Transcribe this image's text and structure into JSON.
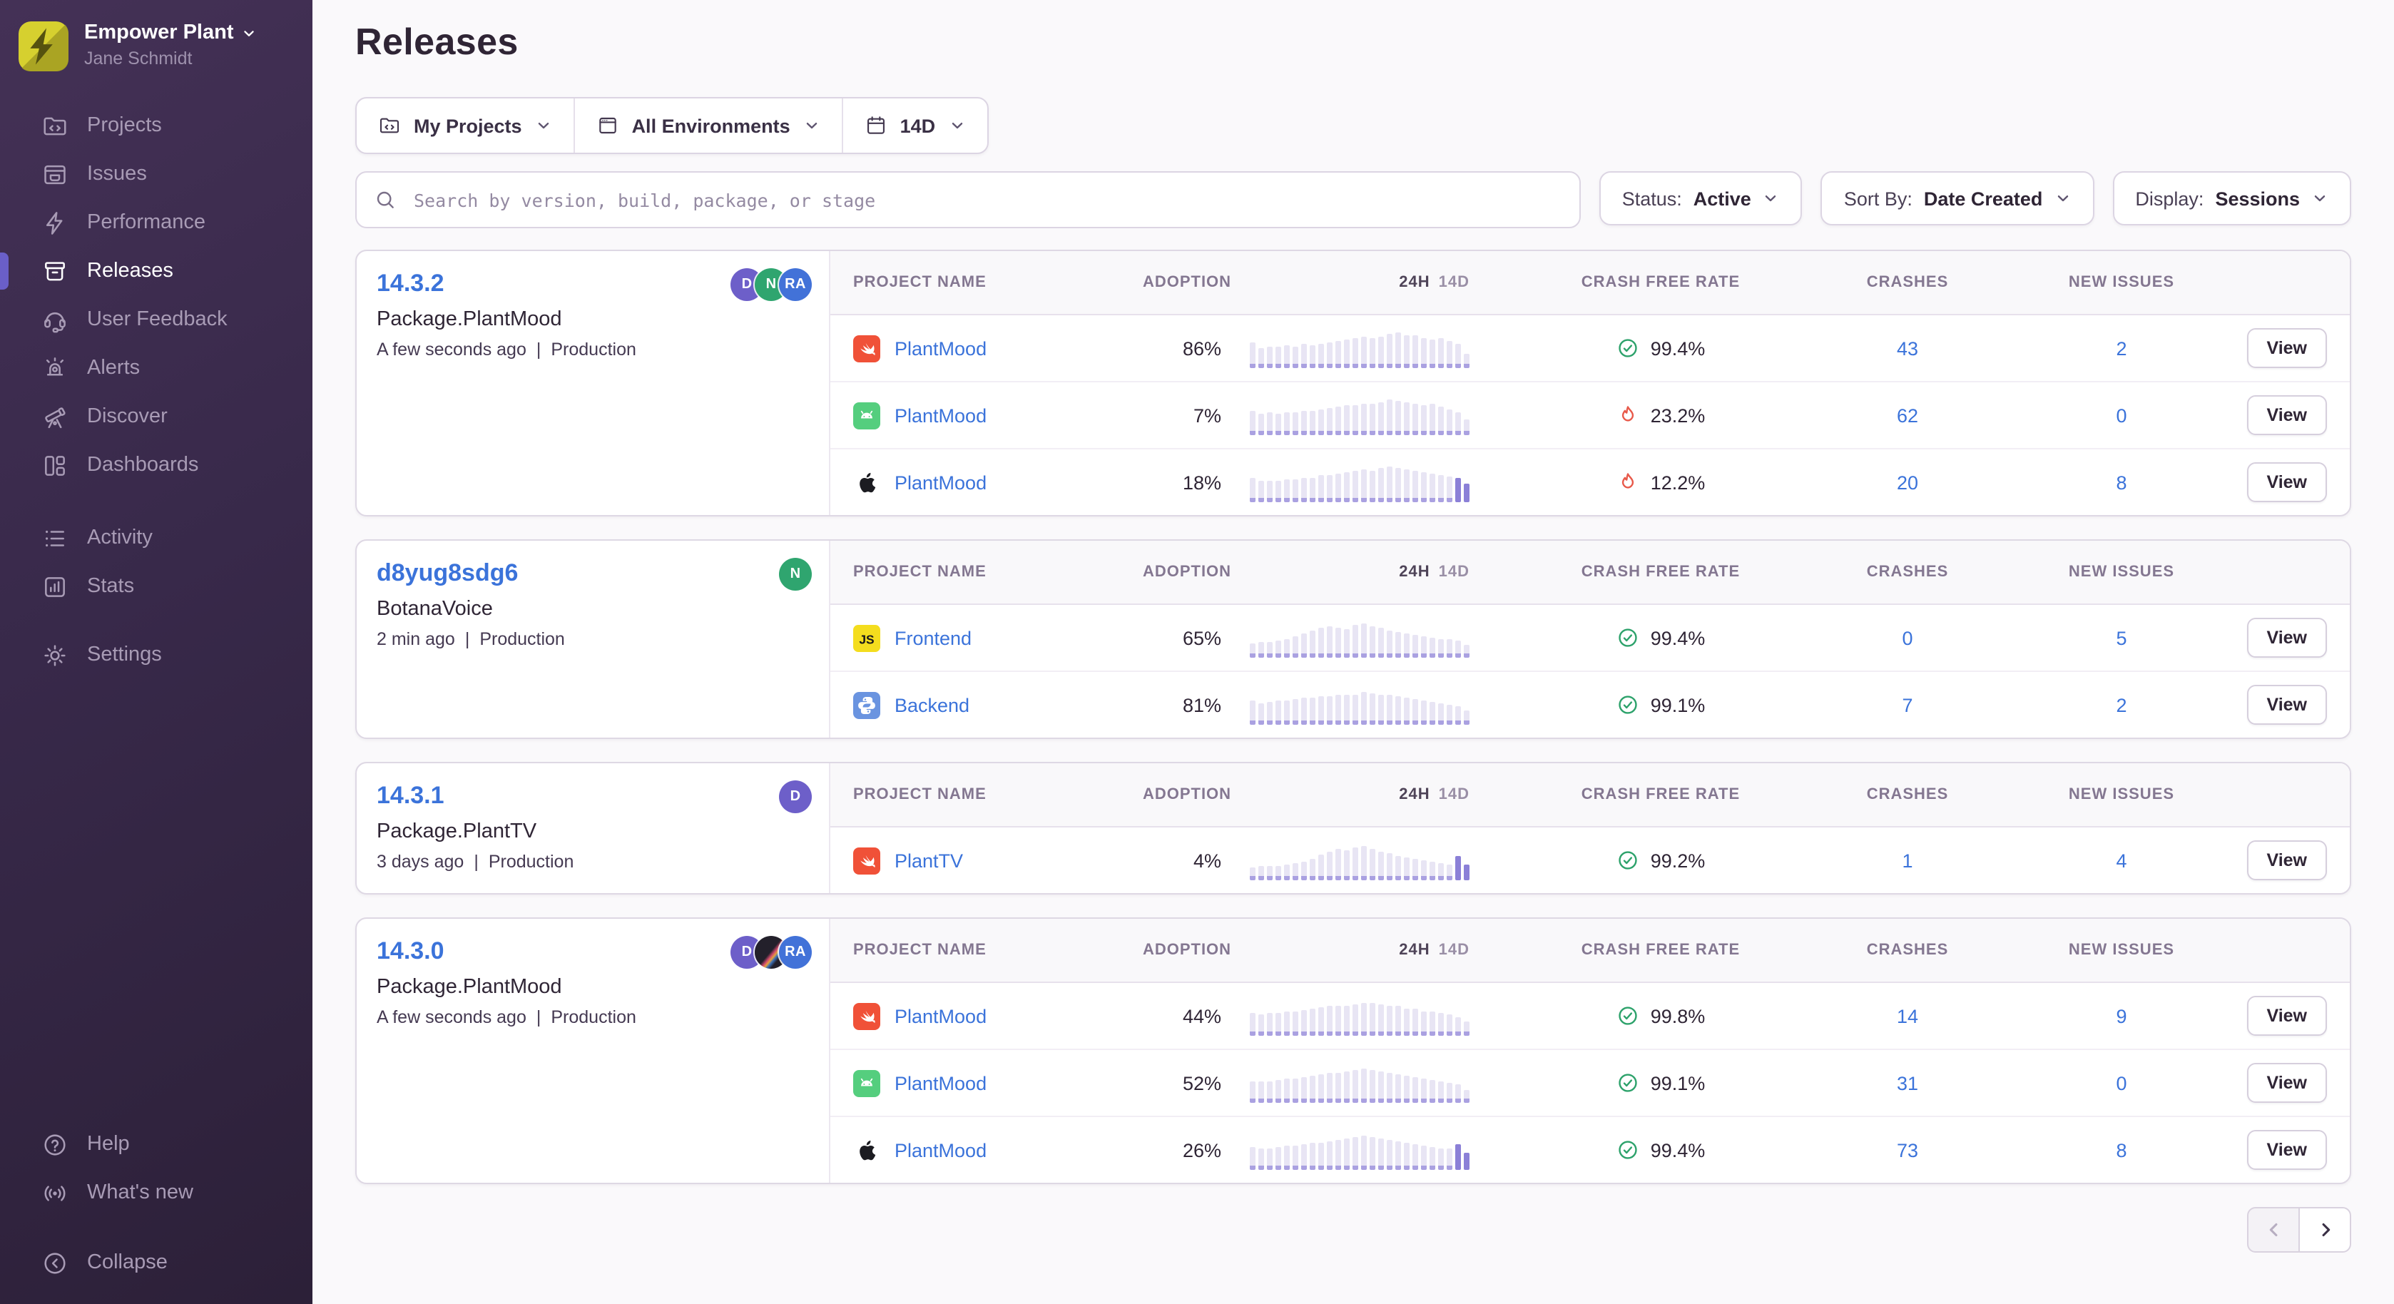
{
  "sidebar": {
    "org": {
      "name": "Empower Plant",
      "user": "Jane Schmidt"
    },
    "nav_primary": [
      {
        "label": "Projects",
        "icon": "projects",
        "active": false
      },
      {
        "label": "Issues",
        "icon": "issues",
        "active": false
      },
      {
        "label": "Performance",
        "icon": "performance",
        "active": false
      },
      {
        "label": "Releases",
        "icon": "releases",
        "active": true
      },
      {
        "label": "User Feedback",
        "icon": "user-feedback",
        "active": false
      },
      {
        "label": "Alerts",
        "icon": "alerts",
        "active": false
      },
      {
        "label": "Discover",
        "icon": "discover",
        "active": false
      },
      {
        "label": "Dashboards",
        "icon": "dashboards",
        "active": false
      }
    ],
    "nav_secondary": [
      {
        "label": "Activity",
        "icon": "activity",
        "active": false
      },
      {
        "label": "Stats",
        "icon": "stats",
        "active": false
      }
    ],
    "nav_settings": [
      {
        "label": "Settings",
        "icon": "settings",
        "active": false
      }
    ],
    "nav_footer": [
      {
        "label": "Help",
        "icon": "help",
        "active": false
      },
      {
        "label": "What's new",
        "icon": "whats-new",
        "active": false
      }
    ],
    "collapse": {
      "label": "Collapse",
      "icon": "collapse"
    }
  },
  "header": {
    "title": "Releases"
  },
  "scope_filters": [
    {
      "icon": "folder-code",
      "label": "My Projects"
    },
    {
      "icon": "window",
      "label": "All Environments"
    },
    {
      "icon": "calendar",
      "label": "14D"
    }
  ],
  "search": {
    "placeholder": "Search by version, build, package, or stage"
  },
  "dropdown_filters": [
    {
      "label": "Status:",
      "value": "Active"
    },
    {
      "label": "Sort By:",
      "value": "Date Created"
    },
    {
      "label": "Display:",
      "value": "Sessions"
    }
  ],
  "table_headers": {
    "project": "Project Name",
    "adoption": "Adoption",
    "h24": "24H",
    "d14": "14D",
    "crash_free": "Crash Free Rate",
    "crashes": "Crashes",
    "new_issues": "New Issues"
  },
  "view_label": "View",
  "meta_separator": "|",
  "colors": {
    "accent": "#6a5fc8",
    "link": "#3b73da",
    "healthy": "#2da26b",
    "critical": "#e8594a"
  },
  "releases": [
    {
      "version": "14.3.2",
      "package": "Package.PlantMood",
      "time": "A few seconds ago",
      "environment": "Production",
      "avatars": [
        {
          "initials": "D",
          "color": "#6d5fc9"
        },
        {
          "initials": "N",
          "color": "#2fa56f"
        },
        {
          "initials": "RA",
          "color": "#4272d8"
        }
      ],
      "rows": [
        {
          "platform": "swift",
          "project": "PlantMood",
          "adoption": "86%",
          "crash_free": "99.4%",
          "healthy": true,
          "crashes": "43",
          "new_issues": "2",
          "tail": 0,
          "spark": [
            0.52,
            0.34,
            0.4,
            0.37,
            0.42,
            0.4,
            0.46,
            0.42,
            0.5,
            0.55,
            0.58,
            0.62,
            0.66,
            0.72,
            0.69,
            0.74,
            0.84,
            0.88,
            0.8,
            0.76,
            0.7,
            0.62,
            0.66,
            0.58,
            0.48,
            0.14
          ]
        },
        {
          "platform": "android",
          "project": "PlantMood",
          "adoption": "7%",
          "crash_free": "23.2%",
          "healthy": false,
          "crashes": "62",
          "new_issues": "0",
          "tail": 0,
          "spark": [
            0.5,
            0.36,
            0.42,
            0.4,
            0.44,
            0.42,
            0.48,
            0.46,
            0.54,
            0.58,
            0.62,
            0.66,
            0.7,
            0.74,
            0.72,
            0.78,
            0.88,
            0.84,
            0.8,
            0.74,
            0.68,
            0.72,
            0.62,
            0.54,
            0.44,
            0.2
          ]
        },
        {
          "platform": "apple",
          "project": "PlantMood",
          "adoption": "18%",
          "crash_free": "12.2%",
          "healthy": false,
          "crashes": "20",
          "new_issues": "8",
          "tail": 2,
          "spark": [
            0.48,
            0.36,
            0.4,
            0.38,
            0.44,
            0.42,
            0.46,
            0.5,
            0.56,
            0.6,
            0.64,
            0.68,
            0.72,
            0.76,
            0.74,
            0.82,
            0.9,
            0.84,
            0.8,
            0.74,
            0.68,
            0.62,
            0.58,
            0.54,
            0.5,
            0.26
          ]
        }
      ]
    },
    {
      "version": "d8yug8sdg6",
      "package": "BotanaVoice",
      "time": "2 min ago",
      "environment": "Production",
      "avatars": [
        {
          "initials": "N",
          "color": "#2fa56f"
        }
      ],
      "rows": [
        {
          "platform": "js",
          "project": "Frontend",
          "adoption": "65%",
          "crash_free": "99.4%",
          "healthy": true,
          "crashes": "0",
          "new_issues": "5",
          "tail": 0,
          "spark": [
            0.14,
            0.16,
            0.2,
            0.24,
            0.3,
            0.38,
            0.48,
            0.58,
            0.66,
            0.72,
            0.7,
            0.64,
            0.76,
            0.82,
            0.74,
            0.66,
            0.6,
            0.54,
            0.48,
            0.44,
            0.4,
            0.34,
            0.3,
            0.26,
            0.22,
            0.1
          ]
        },
        {
          "platform": "python",
          "project": "Backend",
          "adoption": "81%",
          "crash_free": "99.1%",
          "healthy": true,
          "crashes": "7",
          "new_issues": "2",
          "tail": 0,
          "spark": [
            0.46,
            0.4,
            0.44,
            0.46,
            0.5,
            0.52,
            0.56,
            0.58,
            0.62,
            0.64,
            0.68,
            0.66,
            0.7,
            0.76,
            0.72,
            0.68,
            0.66,
            0.62,
            0.58,
            0.52,
            0.48,
            0.44,
            0.4,
            0.34,
            0.3,
            0.12
          ]
        }
      ]
    },
    {
      "version": "14.3.1",
      "package": "Package.PlantTV",
      "time": "3 days ago",
      "environment": "Production",
      "avatars": [
        {
          "initials": "D",
          "color": "#6d5fc9"
        }
      ],
      "rows": [
        {
          "platform": "swift",
          "project": "PlantTV",
          "adoption": "4%",
          "crash_free": "99.2%",
          "healthy": true,
          "crashes": "1",
          "new_issues": "4",
          "tail": 2,
          "spark": [
            0.1,
            0.12,
            0.12,
            0.14,
            0.18,
            0.22,
            0.3,
            0.4,
            0.54,
            0.64,
            0.72,
            0.68,
            0.78,
            0.84,
            0.72,
            0.62,
            0.56,
            0.5,
            0.44,
            0.4,
            0.34,
            0.3,
            0.24,
            0.2,
            0.48,
            0.18
          ]
        }
      ]
    },
    {
      "version": "14.3.0",
      "package": "Package.PlantMood",
      "time": "A few seconds ago",
      "environment": "Production",
      "avatars": [
        {
          "initials": "D",
          "color": "#6d5fc9"
        },
        {
          "initials": "",
          "color": "",
          "photo": true
        },
        {
          "initials": "RA",
          "color": "#4272d8"
        }
      ],
      "rows": [
        {
          "platform": "swift",
          "project": "PlantMood",
          "adoption": "44%",
          "crash_free": "99.8%",
          "healthy": true,
          "crashes": "14",
          "new_issues": "9",
          "tail": 0,
          "spark": [
            0.44,
            0.38,
            0.42,
            0.44,
            0.48,
            0.5,
            0.54,
            0.58,
            0.62,
            0.66,
            0.7,
            0.68,
            0.74,
            0.8,
            0.76,
            0.72,
            0.7,
            0.66,
            0.6,
            0.56,
            0.5,
            0.46,
            0.42,
            0.36,
            0.3,
            0.12
          ]
        },
        {
          "platform": "android",
          "project": "PlantMood",
          "adoption": "52%",
          "crash_free": "99.1%",
          "healthy": true,
          "crashes": "31",
          "new_issues": "0",
          "tail": 0,
          "spark": [
            0.4,
            0.36,
            0.4,
            0.42,
            0.46,
            0.5,
            0.54,
            0.56,
            0.62,
            0.66,
            0.7,
            0.72,
            0.78,
            0.84,
            0.8,
            0.74,
            0.7,
            0.64,
            0.58,
            0.52,
            0.46,
            0.42,
            0.38,
            0.34,
            0.28,
            0.1
          ]
        },
        {
          "platform": "apple",
          "project": "PlantMood",
          "adoption": "26%",
          "crash_free": "99.4%",
          "healthy": true,
          "crashes": "73",
          "new_issues": "8",
          "tail": 2,
          "spark": [
            0.42,
            0.36,
            0.4,
            0.42,
            0.46,
            0.48,
            0.52,
            0.56,
            0.6,
            0.64,
            0.68,
            0.72,
            0.76,
            0.82,
            0.78,
            0.72,
            0.68,
            0.64,
            0.58,
            0.54,
            0.48,
            0.44,
            0.4,
            0.36,
            0.52,
            0.22
          ]
        }
      ]
    }
  ],
  "pagination": {
    "prev_enabled": false,
    "next_enabled": true
  }
}
